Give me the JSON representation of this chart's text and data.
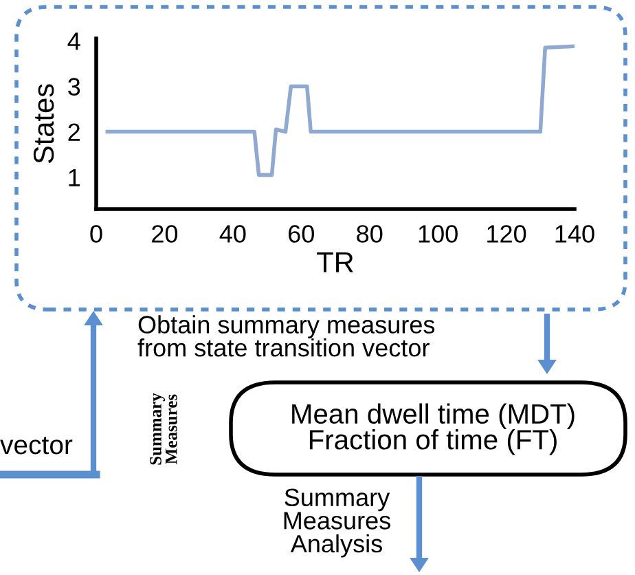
{
  "chart_data": {
    "type": "line",
    "xlabel": "TR",
    "ylabel": "States",
    "x": [
      3.3,
      46.3,
      47.6,
      51.4,
      52.6,
      55.4,
      57,
      61.7,
      62.8,
      130,
      131.4,
      139.7
    ],
    "series": [
      {
        "color": "#8fa9d1",
        "values": [
          2,
          2,
          1.05,
          1.05,
          2.05,
          2,
          3,
          3,
          2,
          2,
          3.85,
          3.88
        ]
      }
    ],
    "xlim": [
      0,
      140
    ],
    "ylim": [
      0.3,
      4.05
    ],
    "xticks": [
      0,
      20,
      40,
      60,
      80,
      100,
      120,
      140
    ],
    "yticks": [
      1,
      2,
      3,
      4
    ],
    "grid": false,
    "legend": false,
    "marker": "none",
    "line_style": "solid",
    "annotations": [
      "Obtain summary measures\nfrom state transition vector",
      "Summary\nMeasures",
      "Mean dwell time (MDT)\nFraction of time (FT)",
      "Summary\nMeasures\nAnalysis",
      "vector"
    ]
  }
}
